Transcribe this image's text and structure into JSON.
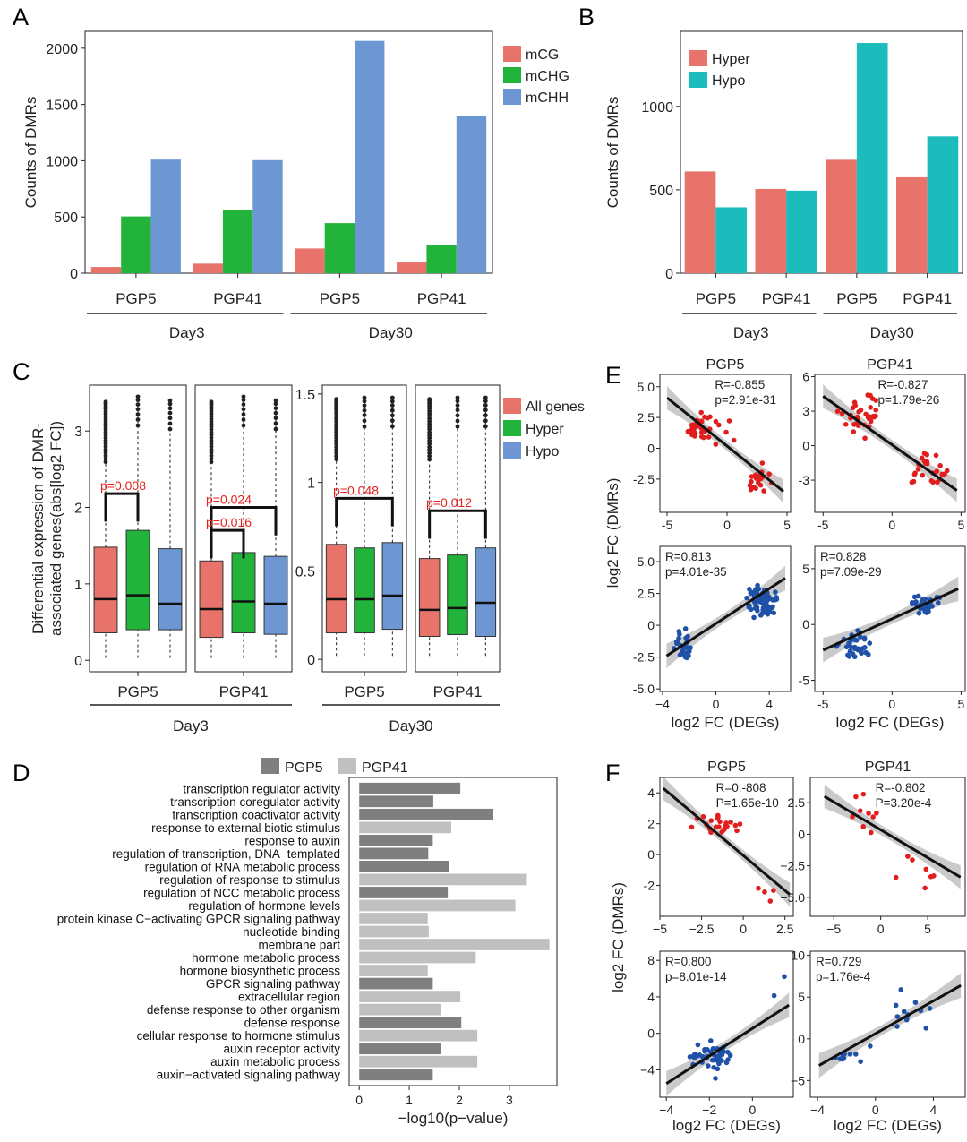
{
  "colors": {
    "red": "#e8736b",
    "green": "#22b33a",
    "blue": "#6c97d3",
    "teal": "#1cbcbd",
    "dark_gray": "#7f7f7f",
    "light_gray": "#c0c0c0",
    "pval_red": "#e8211c",
    "point_red": "#e11d1d",
    "point_blue": "#1f51a8",
    "ci_gray": "#bdbdbd"
  },
  "chart_data": [
    {
      "panel": "A",
      "type": "bar",
      "categories": [
        "PGP5",
        "PGP41",
        "PGP5",
        "PGP41"
      ],
      "groups": [
        {
          "label": "Day3",
          "span": [
            0,
            1
          ]
        },
        {
          "label": "Day30",
          "span": [
            2,
            3
          ]
        }
      ],
      "series": [
        {
          "name": "mCG",
          "values": [
            55,
            85,
            220,
            95
          ]
        },
        {
          "name": "mCHG",
          "values": [
            505,
            565,
            445,
            250
          ]
        },
        {
          "name": "mCHH",
          "values": [
            1010,
            1005,
            2065,
            1400
          ]
        }
      ],
      "ylabel": "Counts of DMRs",
      "ylim": [
        0,
        2150
      ],
      "yticks": [
        0,
        500,
        1000,
        1500,
        2000
      ],
      "legend": "top-right"
    },
    {
      "panel": "B",
      "type": "bar",
      "categories": [
        "PGP5",
        "PGP41",
        "PGP5",
        "PGP41"
      ],
      "groups": [
        {
          "label": "Day3",
          "span": [
            0,
            1
          ]
        },
        {
          "label": "Day30",
          "span": [
            2,
            3
          ]
        }
      ],
      "series": [
        {
          "name": "Hyper",
          "values": [
            610,
            505,
            680,
            575
          ]
        },
        {
          "name": "Hypo",
          "values": [
            395,
            495,
            1380,
            820
          ]
        }
      ],
      "ylabel": "Counts of DMRs",
      "ylim": [
        0,
        1450
      ],
      "yticks": [
        0,
        500,
        1000
      ],
      "legend": "top-left"
    },
    {
      "panel": "C",
      "type": "box",
      "ylabel": "Differential expression of DMR-associated genes(abs[log2 FC])",
      "series_names": [
        "All genes",
        "Hyper",
        "Hypo"
      ],
      "groups": [
        {
          "label": "Day3",
          "ylim": [
            -0.15,
            3.6
          ],
          "yticks": [
            0,
            1,
            2,
            3
          ],
          "facets": [
            {
              "label": "PGP5",
              "boxes": [
                [
                  0.36,
                  0.8,
                  1.48
                ],
                [
                  0.4,
                  0.85,
                  1.7
                ],
                [
                  0.4,
                  0.74,
                  1.46
                ]
              ],
              "whisker_low": [
                0.03,
                0.03,
                0.03
              ],
              "whisker_high": [
                3.4,
                3.45,
                3.4
              ],
              "annotations": [
                {
                  "text": "p=0.008",
                  "between": [
                    0,
                    1
                  ],
                  "y": 2.18
                }
              ]
            },
            {
              "label": "PGP41",
              "boxes": [
                [
                  0.3,
                  0.67,
                  1.3
                ],
                [
                  0.36,
                  0.77,
                  1.41
                ],
                [
                  0.34,
                  0.74,
                  1.36
                ]
              ],
              "whisker_low": [
                0.03,
                0.03,
                0.03
              ],
              "whisker_high": [
                3.4,
                3.45,
                3.4
              ],
              "annotations": [
                {
                  "text": "p=0.024",
                  "between": [
                    0,
                    2
                  ],
                  "y": 2.0
                },
                {
                  "text": "p=0.016",
                  "between": [
                    0,
                    1
                  ],
                  "y": 1.7
                }
              ]
            }
          ]
        },
        {
          "label": "Day30",
          "ylim": [
            -0.07,
            1.55
          ],
          "yticks": [
            0.0,
            0.5,
            1.0,
            1.5
          ],
          "facets": [
            {
              "label": "PGP5",
              "boxes": [
                [
                  0.15,
                  0.34,
                  0.65
                ],
                [
                  0.15,
                  0.34,
                  0.63
                ],
                [
                  0.17,
                  0.36,
                  0.66
                ]
              ],
              "whisker_low": [
                0.02,
                0.02,
                0.02
              ],
              "whisker_high": [
                1.48,
                1.48,
                1.48
              ],
              "annotations": [
                {
                  "text": "p=0.048",
                  "between": [
                    0,
                    2
                  ],
                  "y": 0.91
                }
              ]
            },
            {
              "label": "PGP41",
              "boxes": [
                [
                  0.13,
                  0.28,
                  0.57
                ],
                [
                  0.14,
                  0.29,
                  0.59
                ],
                [
                  0.13,
                  0.32,
                  0.63
                ]
              ],
              "whisker_low": [
                0.02,
                0.02,
                0.02
              ],
              "whisker_high": [
                1.48,
                1.48,
                1.48
              ],
              "annotations": [
                {
                  "text": "p=0.012",
                  "between": [
                    0,
                    2
                  ],
                  "y": 0.84
                }
              ]
            }
          ]
        }
      ],
      "legend": "right"
    },
    {
      "panel": "D",
      "type": "bar",
      "orientation": "horizontal",
      "categories": [
        "transcription regulator activity",
        "transcription coregulator activity",
        "transcription coactivator activity",
        "response to external biotic stimulus",
        "response to auxin",
        "regulation of transcription, DNA−templated",
        "regulation of RNA metabolic process",
        "regulation of response to stimulus",
        "regulation of NCC metabolic process",
        "regulation of hormone levels",
        "protein kinase C−activating GPCR signaling pathway",
        "nucleotide binding",
        "membrane part",
        "hormone metabolic process",
        "hormone biosynthetic process",
        "GPCR signaling pathway",
        "extracellular region",
        "defense response to other organism",
        "defense response",
        "cellular response to hormone stimulus",
        "auxin receptor activity",
        "auxin metabolic process",
        "auxin−activated signaling pathway"
      ],
      "values": [
        2.02,
        1.48,
        2.68,
        1.84,
        1.47,
        1.38,
        1.8,
        3.35,
        1.77,
        3.12,
        1.37,
        1.39,
        3.8,
        2.33,
        1.37,
        1.47,
        2.02,
        1.63,
        2.04,
        2.36,
        1.63,
        2.36,
        1.47
      ],
      "series_of": [
        "PGP5",
        "PGP5",
        "PGP5",
        "PGP41",
        "PGP5",
        "PGP5",
        "PGP5",
        "PGP41",
        "PGP5",
        "PGP41",
        "PGP41",
        "PGP41",
        "PGP41",
        "PGP41",
        "PGP41",
        "PGP5",
        "PGP41",
        "PGP41",
        "PGP5",
        "PGP41",
        "PGP5",
        "PGP41",
        "PGP5"
      ],
      "legend_labels": [
        "PGP5",
        "PGP41"
      ],
      "xlabel": "−log10(p−value)",
      "xlim": [
        -0.2,
        3.95
      ],
      "xticks": [
        0,
        1,
        2,
        3
      ]
    },
    {
      "panel": "E",
      "type": "scatter",
      "xlabel": "log2 FC (DEGs)",
      "ylabel": "log2 FC (DMRs)",
      "columns": [
        "PGP5",
        "PGP41"
      ],
      "facets": [
        {
          "col": "PGP5",
          "row": "hyper",
          "R": "R=-0.855",
          "p": "p=2.91e-31",
          "xlim": [
            -5.6,
            5.3
          ],
          "ylim": [
            -5.2,
            6.0
          ],
          "yticks": [
            5.0,
            2.5,
            0,
            -2.5
          ],
          "yticklabels": [
            "5.0",
            "2.5",
            "0",
            "-2.5"
          ],
          "xticks": [
            -5,
            0,
            5
          ],
          "fit": [
            [
              -5.0,
              4.1
            ],
            [
              4.7,
              -3.5
            ]
          ],
          "color": "red",
          "n": 60,
          "seed": 11,
          "clusters": [
            [
              -2.2,
              1.8,
              1.3,
              1.0,
              0.7
            ],
            [
              2.6,
              -2.5,
              1.0,
              1.0,
              0.3
            ]
          ]
        },
        {
          "col": "PGP41",
          "row": "hyper",
          "R": "R=-0.827",
          "p": "p=1.79e-26",
          "xlim": [
            -5.6,
            5.3
          ],
          "ylim": [
            -5.8,
            6.2
          ],
          "yticks": [
            6,
            3,
            0,
            -3
          ],
          "yticklabels": [
            "6",
            "3",
            "0",
            "-3"
          ],
          "xticks": [
            -5,
            0,
            5
          ],
          "fit": [
            [
              -5.0,
              4.3
            ],
            [
              4.7,
              -3.9
            ]
          ],
          "color": "red",
          "n": 60,
          "seed": 23,
          "clusters": [
            [
              -2.0,
              2.6,
              1.3,
              1.2,
              0.6
            ],
            [
              2.6,
              -2.3,
              1.1,
              1.1,
              0.4
            ]
          ]
        },
        {
          "col": "PGP5",
          "row": "hypo",
          "R": "R=0.813",
          "p": "p=4.01e-35",
          "xlim": [
            -4.2,
            5.6
          ],
          "ylim": [
            -5.2,
            6.2
          ],
          "yticks": [
            5.0,
            2.5,
            0,
            -2.5,
            -5.0
          ],
          "yticklabels": [
            "5.0",
            "2.5",
            "0",
            "-2.5",
            "-5.0"
          ],
          "xticks": [
            -4,
            0,
            4
          ],
          "xticklabels": [
            "−4",
            "0",
            "4"
          ],
          "fit": [
            [
              -3.7,
              -2.4
            ],
            [
              5.2,
              3.7
            ]
          ],
          "color": "blue",
          "n": 100,
          "seed": 37,
          "clusters": [
            [
              -2.5,
              -1.6,
              0.7,
              0.9,
              0.3
            ],
            [
              3.3,
              1.9,
              1.0,
              0.9,
              0.7
            ]
          ]
        },
        {
          "col": "PGP41",
          "row": "hypo",
          "R": "R=0.828",
          "p": "p=7.09e-29",
          "xlim": [
            -5.6,
            5.3
          ],
          "ylim": [
            -6.0,
            7.0
          ],
          "yticks": [
            5,
            0,
            -5
          ],
          "yticklabels": [
            "5",
            "0",
            "-5"
          ],
          "xticks": [
            -5,
            0,
            5
          ],
          "fit": [
            [
              -5.0,
              -2.3
            ],
            [
              4.8,
              3.2
            ]
          ],
          "color": "blue",
          "n": 70,
          "seed": 41,
          "clusters": [
            [
              -2.5,
              -2.0,
              1.0,
              1.0,
              0.4
            ],
            [
              2.3,
              1.8,
              1.1,
              0.8,
              0.6
            ]
          ]
        }
      ]
    },
    {
      "panel": "F",
      "type": "scatter",
      "xlabel": "log2 FC (DEGs)",
      "ylabel": "log2 FC (DMRs)",
      "columns": [
        "PGP5",
        "PGP41"
      ],
      "facets": [
        {
          "col": "PGP5",
          "row": "hyper",
          "R": "R=0.-808",
          "p": "P=1.65e-10",
          "xlim": [
            -5.0,
            3.0
          ],
          "ylim": [
            -4.0,
            5.0
          ],
          "yticks": [
            4,
            2,
            0,
            -2
          ],
          "yticklabels": [
            "4",
            "2",
            "0",
            "-2"
          ],
          "xticks": [
            -5,
            -2.5,
            0,
            2.5
          ],
          "xticklabels": [
            "−5",
            "−2.5",
            "0",
            "2.5"
          ],
          "fit": [
            [
              -4.8,
              4.3
            ],
            [
              2.8,
              -2.6
            ]
          ],
          "color": "red",
          "n": 28,
          "seed": 53,
          "clusters": [
            [
              -1.5,
              2.0,
              1.0,
              0.7,
              0.8
            ],
            [
              1.5,
              -2.6,
              0.5,
              0.6,
              0.2
            ]
          ]
        },
        {
          "col": "PGP41",
          "row": "hyper",
          "R": "R=-0.802",
          "p": "P=3.20e-4",
          "xlim": [
            -7.5,
            9.0
          ],
          "ylim": [
            -6.5,
            4.5
          ],
          "yticks": [
            2.5,
            0,
            -2.5,
            -5.0
          ],
          "yticklabels": [
            "2.5",
            "0",
            "−2.5",
            "−5.0"
          ],
          "xticks": [
            -5,
            0,
            5
          ],
          "xticklabels": [
            "−5",
            "0",
            "5"
          ],
          "fit": [
            [
              -6.0,
              3.0
            ],
            [
              8.5,
              -3.4
            ]
          ],
          "color": "red",
          "n": 16,
          "seed": 67,
          "clusters": [
            [
              -2.0,
              1.6,
              2.2,
              1.2,
              0.55
            ],
            [
              3.5,
              -2.8,
              1.8,
              1.0,
              0.45
            ]
          ]
        },
        {
          "col": "PGP5",
          "row": "hypo",
          "R": "R=0.800",
          "p": "p=8.01e-14",
          "xlim": [
            -4.3,
            1.9
          ],
          "ylim": [
            -7.0,
            9.0
          ],
          "yticks": [
            8,
            4,
            0,
            -4
          ],
          "yticklabels": [
            "8",
            "4",
            "0",
            "−4"
          ],
          "xticks": [
            -4,
            -2,
            0
          ],
          "xticklabels": [
            "−4",
            "−2",
            "0"
          ],
          "fit": [
            [
              -4.0,
              -5.5
            ],
            [
              1.7,
              3.1
            ]
          ],
          "color": "blue",
          "n": 45,
          "seed": 79,
          "clusters": [
            [
              -2.0,
              -2.5,
              0.8,
              1.3,
              0.85
            ],
            [
              1.4,
              3.0,
              0.3,
              2.5,
              0.15
            ]
          ]
        },
        {
          "col": "PGP41",
          "row": "hypo",
          "R": "R=0.729",
          "p": "p=1.76e-4",
          "xlim": [
            -4.5,
            6.2
          ],
          "ylim": [
            -7.0,
            10.5
          ],
          "yticks": [
            10,
            5,
            0,
            -5
          ],
          "yticklabels": [
            "10",
            "5",
            "0",
            "−5"
          ],
          "xticks": [
            -4,
            0,
            4
          ],
          "xticklabels": [
            "−4",
            "0",
            "4"
          ],
          "fit": [
            [
              -3.9,
              -3.2
            ],
            [
              5.9,
              6.4
            ]
          ],
          "color": "blue",
          "n": 22,
          "seed": 83,
          "clusters": [
            [
              -2.0,
              -2.3,
              1.1,
              1.0,
              0.6
            ],
            [
              2.3,
              3.5,
              1.5,
              3.0,
              0.4
            ]
          ]
        }
      ]
    }
  ],
  "panel_labels": {
    "A": "A",
    "B": "B",
    "C": "C",
    "D": "D",
    "E": "E",
    "F": "F"
  }
}
